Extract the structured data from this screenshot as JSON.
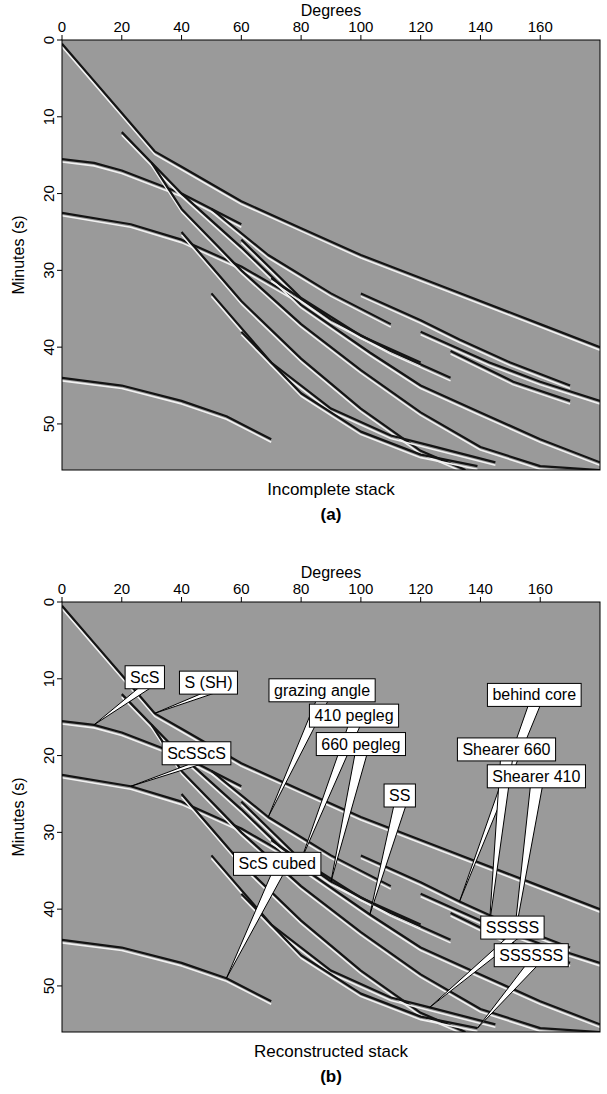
{
  "chart_data": [
    {
      "type": "seismic-stack",
      "title": "Incomplete stack",
      "subtitle": "(a)",
      "x_label": "Degrees",
      "y_label": "Minutes (s)",
      "xlim": [
        0,
        180
      ],
      "ylim": [
        0,
        56
      ],
      "xticks": [
        0,
        20,
        40,
        60,
        80,
        100,
        120,
        140,
        160
      ],
      "yticks": [
        0,
        10,
        20,
        30,
        40,
        50
      ],
      "series": [
        {
          "x": [
            0,
            10,
            20,
            31,
            40,
            60,
            80,
            100,
            130,
            160,
            180
          ],
          "values": [
            0.5,
            5,
            9.5,
            14.5,
            16.5,
            21,
            24.5,
            28,
            32.5,
            37,
            40
          ]
        },
        {
          "x": [
            0,
            10.7,
            20,
            40,
            60
          ],
          "values": [
            15.5,
            16,
            17,
            20,
            24
          ]
        },
        {
          "x": [
            0,
            23,
            40,
            60,
            80
          ],
          "values": [
            22.5,
            24,
            26,
            29.5,
            34
          ]
        },
        {
          "x": [
            0,
            20,
            40,
            55,
            70
          ],
          "values": [
            44,
            45,
            47,
            49,
            52
          ]
        },
        {
          "x": [
            20,
            40,
            60,
            80,
            103,
            120,
            140,
            160,
            180
          ],
          "values": [
            12,
            20,
            27,
            34.5,
            40.7,
            45,
            48.5,
            52,
            55
          ]
        },
        {
          "x": [
            50,
            69,
            90,
            110
          ],
          "values": [
            22,
            28,
            33,
            37
          ]
        },
        {
          "x": [
            60,
            80,
            100,
            120
          ],
          "values": [
            26,
            33.6,
            38.5,
            42
          ]
        },
        {
          "x": [
            70,
            90,
            110,
            130
          ],
          "values": [
            31,
            36.4,
            40.5,
            44
          ]
        },
        {
          "x": [
            30,
            40,
            60,
            80,
            100,
            120,
            140,
            160,
            180
          ],
          "values": [
            16,
            22,
            30,
            37,
            43,
            48.5,
            53,
            55.5,
            56
          ]
        },
        {
          "x": [
            40,
            60,
            80,
            100,
            120,
            135
          ],
          "values": [
            25,
            34,
            41.5,
            48,
            53.5,
            56
          ]
        },
        {
          "x": [
            50,
            70,
            90,
            110,
            123,
            145
          ],
          "values": [
            33,
            42,
            48,
            51.5,
            52.8,
            55
          ]
        },
        {
          "x": [
            60,
            80,
            100,
            120,
            139
          ],
          "values": [
            38,
            46,
            51,
            54,
            55.5
          ]
        },
        {
          "x": [
            100,
            120,
            133,
            150,
            170
          ],
          "values": [
            33,
            36.5,
            39,
            42,
            45
          ]
        },
        {
          "x": [
            120,
            143,
            160,
            180
          ],
          "values": [
            38,
            42,
            44.5,
            47
          ]
        },
        {
          "x": [
            130,
            151,
            170
          ],
          "values": [
            40.5,
            44.5,
            47
          ]
        }
      ]
    },
    {
      "type": "seismic-stack",
      "title": "Reconstructed stack",
      "subtitle": "(b)",
      "x_label": "Degrees",
      "y_label": "Minutes (s)",
      "xlim": [
        0,
        180
      ],
      "ylim": [
        0,
        56
      ],
      "xticks": [
        0,
        20,
        40,
        60,
        80,
        100,
        120,
        140,
        160
      ],
      "yticks": [
        0,
        10,
        20,
        30,
        40,
        50
      ],
      "series": [
        {
          "x": [
            0,
            10,
            20,
            31,
            40,
            60,
            80,
            100,
            130,
            160,
            180
          ],
          "values": [
            0.5,
            5,
            9.5,
            14.5,
            16.5,
            21,
            24.5,
            28,
            32.5,
            37,
            40
          ]
        },
        {
          "x": [
            0,
            10.7,
            20,
            40,
            60
          ],
          "values": [
            15.5,
            16,
            17,
            20,
            24
          ]
        },
        {
          "x": [
            0,
            23,
            40,
            60,
            80
          ],
          "values": [
            22.5,
            24,
            26,
            29.5,
            34
          ]
        },
        {
          "x": [
            0,
            20,
            40,
            55,
            70
          ],
          "values": [
            44,
            45,
            47,
            49,
            52
          ]
        },
        {
          "x": [
            20,
            40,
            60,
            80,
            103,
            120,
            140,
            160,
            180
          ],
          "values": [
            12,
            20,
            27,
            34.5,
            40.7,
            45,
            48.5,
            52,
            55
          ]
        },
        {
          "x": [
            50,
            69,
            90,
            110
          ],
          "values": [
            22,
            28,
            33,
            37
          ]
        },
        {
          "x": [
            60,
            80,
            100,
            120
          ],
          "values": [
            26,
            33.6,
            38.5,
            42
          ]
        },
        {
          "x": [
            70,
            90,
            110,
            130
          ],
          "values": [
            31,
            36.4,
            40.5,
            44
          ]
        },
        {
          "x": [
            30,
            40,
            60,
            80,
            100,
            120,
            140,
            160,
            180
          ],
          "values": [
            16,
            22,
            30,
            37,
            43,
            48.5,
            53,
            55.5,
            56
          ]
        },
        {
          "x": [
            40,
            60,
            80,
            100,
            120,
            135
          ],
          "values": [
            25,
            34,
            41.5,
            48,
            53.5,
            56
          ]
        },
        {
          "x": [
            50,
            70,
            90,
            110,
            123,
            145
          ],
          "values": [
            33,
            42,
            48,
            51.5,
            52.8,
            55
          ]
        },
        {
          "x": [
            60,
            80,
            100,
            120,
            139
          ],
          "values": [
            38,
            46,
            51,
            54,
            55.5
          ]
        },
        {
          "x": [
            100,
            120,
            133,
            150,
            170
          ],
          "values": [
            33,
            36.5,
            39,
            42,
            45
          ]
        },
        {
          "x": [
            120,
            143,
            160,
            180
          ],
          "values": [
            38,
            42,
            44.5,
            47
          ]
        },
        {
          "x": [
            130,
            151,
            170
          ],
          "values": [
            40.5,
            44.5,
            47
          ]
        }
      ],
      "annotations": [
        {
          "text": "ScS",
          "x": 10.7,
          "y": 16,
          "label_x": 27.7,
          "label_y": 9.8
        },
        {
          "text": "S (SH)",
          "x": 31,
          "y": 14.5,
          "label_x": 49,
          "label_y": 10.5
        },
        {
          "text": "grazing angle",
          "x": 69,
          "y": 28,
          "label_x": 87,
          "label_y": 11.5
        },
        {
          "text": "410 pegleg",
          "x": 80,
          "y": 33.6,
          "label_x": 97.7,
          "label_y": 14.8
        },
        {
          "text": "660 pegleg",
          "x": 90,
          "y": 36.4,
          "label_x": 100,
          "label_y": 18.5
        },
        {
          "text": "behind core",
          "x": 133,
          "y": 39,
          "label_x": 158,
          "label_y": 12.1
        },
        {
          "text": "Shearer 660",
          "x": 143,
          "y": 42,
          "label_x": 148.7,
          "label_y": 19.2
        },
        {
          "text": "Shearer 410",
          "x": 151,
          "y": 44.5,
          "label_x": 158.7,
          "label_y": 22.7
        },
        {
          "text": "ScSScS",
          "x": 23,
          "y": 24,
          "label_x": 45,
          "label_y": 19.7
        },
        {
          "text": "SS",
          "x": 103,
          "y": 40.7,
          "label_x": 113,
          "label_y": 25.2
        },
        {
          "text": "ScS cubed",
          "x": 55,
          "y": 49,
          "label_x": 72,
          "label_y": 34.1
        },
        {
          "text": "SSSSS",
          "x": 123,
          "y": 52.8,
          "label_x": 150.7,
          "label_y": 42.4
        },
        {
          "text": "SSSSSS",
          "x": 139,
          "y": 55.5,
          "label_x": 157,
          "label_y": 46
        }
      ]
    }
  ]
}
